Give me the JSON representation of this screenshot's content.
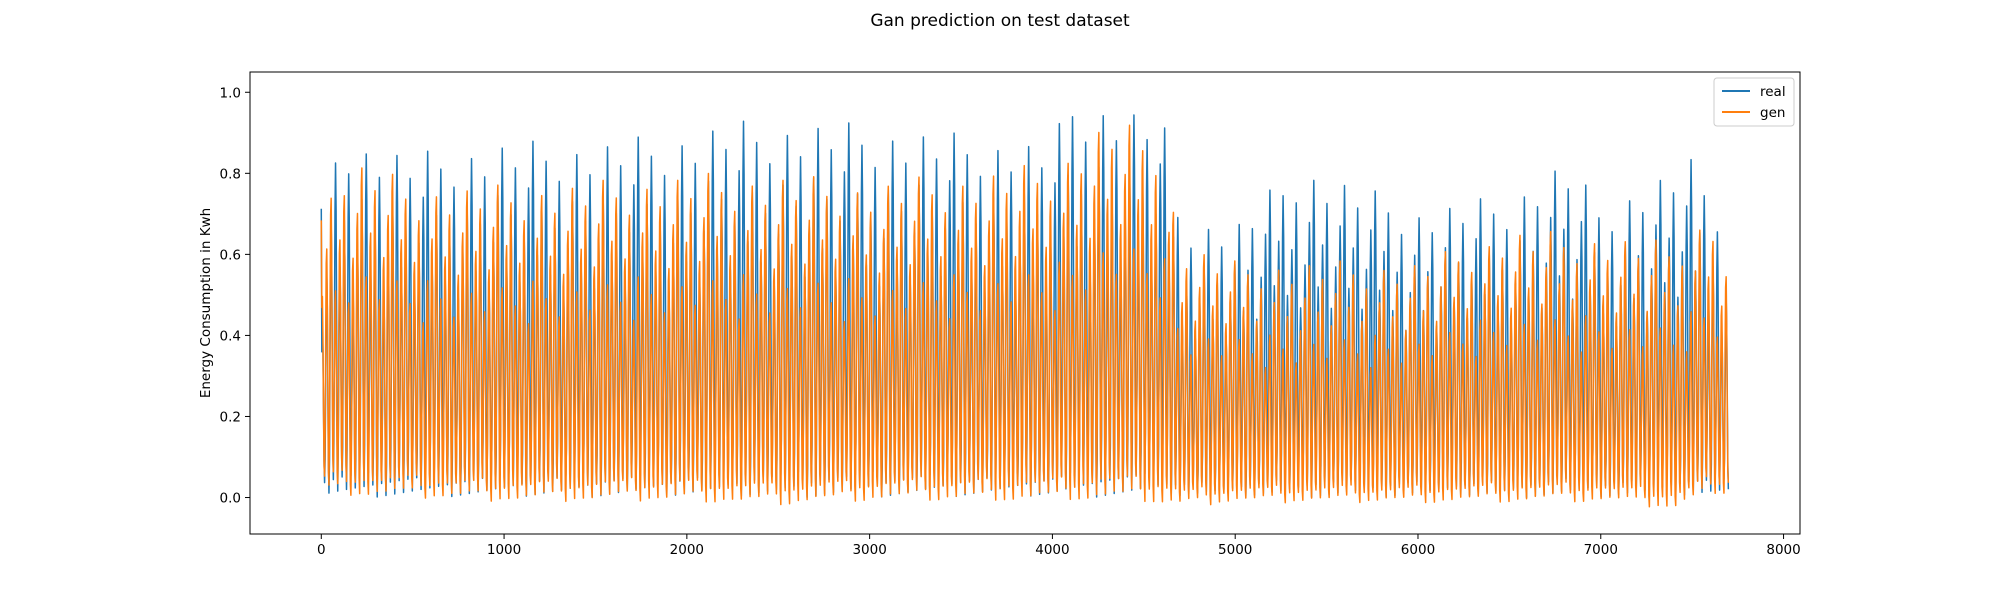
{
  "chart_data": {
    "type": "line",
    "title": "Gan prediction on test dataset",
    "xlabel": "",
    "ylabel": "Energy Consumption in Kwh",
    "xlim": [
      -390,
      8090
    ],
    "ylim": [
      -0.09,
      1.05
    ],
    "x_ticks": [
      0,
      1000,
      2000,
      3000,
      4000,
      5000,
      6000,
      7000,
      8000
    ],
    "x_tick_labels": [
      "0",
      "1000",
      "2000",
      "3000",
      "4000",
      "5000",
      "6000",
      "7000",
      "8000"
    ],
    "y_ticks": [
      0.0,
      0.2,
      0.4,
      0.6,
      0.8,
      1.0
    ],
    "y_tick_labels": [
      "0.0",
      "0.2",
      "0.4",
      "0.6",
      "0.8",
      "1.0"
    ],
    "grid": false,
    "legend_position": "top-right",
    "x_range": [
      0,
      7700
    ],
    "n_points": 7700,
    "series": [
      {
        "name": "real",
        "color": "#1f77b4",
        "envelope": [
          {
            "x": 0,
            "min": 0.0,
            "max": 0.75
          },
          {
            "x": 100,
            "min": 0.0,
            "max": 0.91
          },
          {
            "x": 250,
            "min": 0.0,
            "max": 0.88
          },
          {
            "x": 500,
            "min": 0.0,
            "max": 0.85
          },
          {
            "x": 1000,
            "min": 0.0,
            "max": 0.88
          },
          {
            "x": 1500,
            "min": 0.0,
            "max": 0.88
          },
          {
            "x": 1950,
            "min": 0.0,
            "max": 0.9
          },
          {
            "x": 2200,
            "min": 0.0,
            "max": 0.93
          },
          {
            "x": 2800,
            "min": 0.0,
            "max": 0.93
          },
          {
            "x": 3500,
            "min": 0.0,
            "max": 0.9
          },
          {
            "x": 4000,
            "min": 0.0,
            "max": 0.88
          },
          {
            "x": 4100,
            "min": 0.0,
            "max": 1.0
          },
          {
            "x": 4300,
            "min": 0.0,
            "max": 0.98
          },
          {
            "x": 4600,
            "min": 0.0,
            "max": 0.95
          },
          {
            "x": 4700,
            "min": 0.0,
            "max": 0.7
          },
          {
            "x": 5000,
            "min": 0.0,
            "max": 0.68
          },
          {
            "x": 5350,
            "min": 0.0,
            "max": 0.83
          },
          {
            "x": 6000,
            "min": 0.0,
            "max": 0.72
          },
          {
            "x": 6500,
            "min": 0.0,
            "max": 0.75
          },
          {
            "x": 6800,
            "min": 0.0,
            "max": 0.84
          },
          {
            "x": 7000,
            "min": 0.0,
            "max": 0.73
          },
          {
            "x": 7500,
            "min": 0.0,
            "max": 0.84
          },
          {
            "x": 7700,
            "min": 0.0,
            "max": 0.7
          }
        ]
      },
      {
        "name": "gen",
        "color": "#ff7f0e",
        "envelope": [
          {
            "x": 0,
            "min": 0.0,
            "max": 0.72
          },
          {
            "x": 100,
            "min": 0.0,
            "max": 0.84
          },
          {
            "x": 250,
            "min": -0.01,
            "max": 0.85
          },
          {
            "x": 500,
            "min": -0.01,
            "max": 0.79
          },
          {
            "x": 1000,
            "min": -0.02,
            "max": 0.79
          },
          {
            "x": 1500,
            "min": -0.02,
            "max": 0.8
          },
          {
            "x": 2000,
            "min": -0.02,
            "max": 0.82
          },
          {
            "x": 2500,
            "min": -0.03,
            "max": 0.82
          },
          {
            "x": 3000,
            "min": -0.02,
            "max": 0.8
          },
          {
            "x": 3500,
            "min": -0.02,
            "max": 0.82
          },
          {
            "x": 4000,
            "min": -0.02,
            "max": 0.85
          },
          {
            "x": 4300,
            "min": -0.02,
            "max": 0.96
          },
          {
            "x": 4600,
            "min": -0.03,
            "max": 0.92
          },
          {
            "x": 4700,
            "min": -0.03,
            "max": 0.65
          },
          {
            "x": 5000,
            "min": -0.02,
            "max": 0.6
          },
          {
            "x": 6000,
            "min": -0.02,
            "max": 0.6
          },
          {
            "x": 6500,
            "min": -0.02,
            "max": 0.68
          },
          {
            "x": 7000,
            "min": -0.02,
            "max": 0.67
          },
          {
            "x": 7400,
            "min": -0.04,
            "max": 0.65
          },
          {
            "x": 7600,
            "min": 0.0,
            "max": 0.73
          },
          {
            "x": 7700,
            "min": 0.0,
            "max": 0.65
          }
        ]
      }
    ]
  }
}
